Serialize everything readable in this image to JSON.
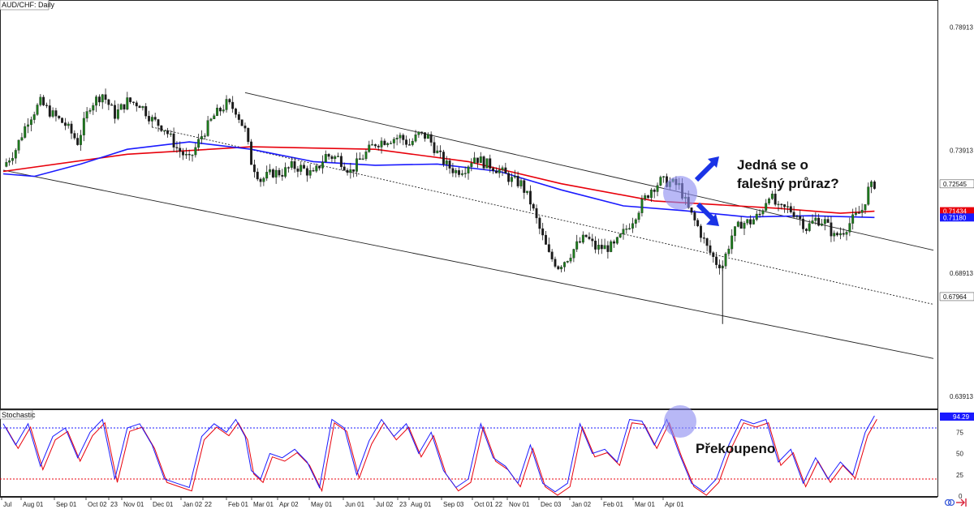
{
  "chart_data": {
    "type": "candlestick",
    "title": "AUD/CHF: Daily",
    "y_ticks": [
      "0.78913",
      "0.73913",
      "0.68913",
      "0.63913"
    ],
    "ylim": [
      0.6345,
      0.7995
    ],
    "price_labels": [
      {
        "text": "0.72545",
        "value": 0.72545,
        "bg": "#ffffff",
        "fg": "#111111"
      },
      {
        "text": "0.71434",
        "value": 0.71434,
        "bg": "#e8000b",
        "fg": "#ffffff"
      },
      {
        "text": "0.71180",
        "value": 0.7118,
        "bg": "#1a1aff",
        "fg": "#ffffff"
      },
      {
        "text": "0.67964",
        "value": 0.67964,
        "bg": "#ffffff",
        "fg": "#111111"
      }
    ],
    "x_ticks": [
      "Jul",
      "Aug 01",
      "Sep 01",
      "Oct 02",
      "23",
      "Nov 01",
      "Dec 01",
      "Jan 02",
      "22",
      "Feb 01",
      "Mar 01",
      "Apr 02",
      "May 01",
      "Jun 01",
      "Jul 02",
      "23",
      "Aug 01",
      "Sep 03",
      "Oct 01",
      "22",
      "Nov 01",
      "Dec 03",
      "Jan 02",
      "Feb 01",
      "Mar 01",
      "Apr 01"
    ],
    "close_series": [
      {
        "x": 0,
        "y": 0.7325
      },
      {
        "x": 4,
        "y": 0.7395
      },
      {
        "x": 8,
        "y": 0.7515
      },
      {
        "x": 12,
        "y": 0.7585
      },
      {
        "x": 16,
        "y": 0.7535
      },
      {
        "x": 20,
        "y": 0.7495
      },
      {
        "x": 24,
        "y": 0.7425
      },
      {
        "x": 28,
        "y": 0.7575
      },
      {
        "x": 32,
        "y": 0.762
      },
      {
        "x": 36,
        "y": 0.7535
      },
      {
        "x": 40,
        "y": 0.759
      },
      {
        "x": 44,
        "y": 0.758
      },
      {
        "x": 48,
        "y": 0.7515
      },
      {
        "x": 52,
        "y": 0.748
      },
      {
        "x": 56,
        "y": 0.74
      },
      {
        "x": 60,
        "y": 0.735
      },
      {
        "x": 64,
        "y": 0.745
      },
      {
        "x": 68,
        "y": 0.753
      },
      {
        "x": 72,
        "y": 0.758
      },
      {
        "x": 75,
        "y": 0.7555
      },
      {
        "x": 78,
        "y": 0.747
      },
      {
        "x": 80,
        "y": 0.7345
      },
      {
        "x": 83,
        "y": 0.727
      },
      {
        "x": 87,
        "y": 0.73
      },
      {
        "x": 90,
        "y": 0.73
      },
      {
        "x": 93,
        "y": 0.7325
      },
      {
        "x": 96,
        "y": 0.732
      },
      {
        "x": 100,
        "y": 0.729
      },
      {
        "x": 104,
        "y": 0.737
      },
      {
        "x": 108,
        "y": 0.736
      },
      {
        "x": 112,
        "y": 0.7305
      },
      {
        "x": 116,
        "y": 0.7365
      },
      {
        "x": 120,
        "y": 0.742
      },
      {
        "x": 124,
        "y": 0.7435
      },
      {
        "x": 128,
        "y": 0.7445
      },
      {
        "x": 131,
        "y": 0.7415
      },
      {
        "x": 134,
        "y": 0.7455
      },
      {
        "x": 137,
        "y": 0.7445
      },
      {
        "x": 140,
        "y": 0.738
      },
      {
        "x": 143,
        "y": 0.733
      },
      {
        "x": 146,
        "y": 0.7305
      },
      {
        "x": 149,
        "y": 0.732
      },
      {
        "x": 152,
        "y": 0.7365
      },
      {
        "x": 155,
        "y": 0.734
      },
      {
        "x": 158,
        "y": 0.7325
      },
      {
        "x": 161,
        "y": 0.73
      },
      {
        "x": 164,
        "y": 0.727
      },
      {
        "x": 167,
        "y": 0.7255
      },
      {
        "x": 170,
        "y": 0.718
      },
      {
        "x": 173,
        "y": 0.707
      },
      {
        "x": 176,
        "y": 0.6965
      },
      {
        "x": 179,
        "y": 0.692
      },
      {
        "x": 182,
        "y": 0.6955
      },
      {
        "x": 185,
        "y": 0.7005
      },
      {
        "x": 188,
        "y": 0.704
      },
      {
        "x": 191,
        "y": 0.6995
      },
      {
        "x": 194,
        "y": 0.6995
      },
      {
        "x": 197,
        "y": 0.7
      },
      {
        "x": 200,
        "y": 0.7055
      },
      {
        "x": 203,
        "y": 0.711
      },
      {
        "x": 206,
        "y": 0.7175
      },
      {
        "x": 209,
        "y": 0.7235
      },
      {
        "x": 212,
        "y": 0.7265
      },
      {
        "x": 215,
        "y": 0.726
      },
      {
        "x": 218,
        "y": 0.7245
      },
      {
        "x": 221,
        "y": 0.715
      },
      {
        "x": 224,
        "y": 0.708
      },
      {
        "x": 227,
        "y": 0.6995
      },
      {
        "x": 230,
        "y": 0.6935
      },
      {
        "x": 232,
        "y": 0.6925
      },
      {
        "x": 235,
        "y": 0.7045
      },
      {
        "x": 238,
        "y": 0.7095
      },
      {
        "x": 241,
        "y": 0.71
      },
      {
        "x": 244,
        "y": 0.713
      },
      {
        "x": 247,
        "y": 0.7215
      },
      {
        "x": 250,
        "y": 0.715
      },
      {
        "x": 253,
        "y": 0.7155
      },
      {
        "x": 256,
        "y": 0.713
      },
      {
        "x": 259,
        "y": 0.7075
      },
      {
        "x": 262,
        "y": 0.711
      },
      {
        "x": 265,
        "y": 0.71
      },
      {
        "x": 268,
        "y": 0.704
      },
      {
        "x": 271,
        "y": 0.7065
      },
      {
        "x": 274,
        "y": 0.711
      },
      {
        "x": 277,
        "y": 0.715
      },
      {
        "x": 279,
        "y": 0.723
      },
      {
        "x": 281,
        "y": 0.72545
      }
    ],
    "moving_averages": [
      {
        "color": "#e8000b",
        "points": [
          {
            "x": 0,
            "y": 0.7305
          },
          {
            "x": 40,
            "y": 0.7375
          },
          {
            "x": 80,
            "y": 0.7405
          },
          {
            "x": 120,
            "y": 0.7395
          },
          {
            "x": 150,
            "y": 0.7345
          },
          {
            "x": 180,
            "y": 0.7255
          },
          {
            "x": 210,
            "y": 0.7185
          },
          {
            "x": 250,
            "y": 0.7155
          },
          {
            "x": 270,
            "y": 0.7135
          },
          {
            "x": 281,
            "y": 0.71434
          }
        ]
      },
      {
        "color": "#1a1aff",
        "points": [
          {
            "x": 0,
            "y": 0.7295
          },
          {
            "x": 10,
            "y": 0.7285
          },
          {
            "x": 25,
            "y": 0.7335
          },
          {
            "x": 40,
            "y": 0.7395
          },
          {
            "x": 60,
            "y": 0.7425
          },
          {
            "x": 80,
            "y": 0.7395
          },
          {
            "x": 100,
            "y": 0.7345
          },
          {
            "x": 120,
            "y": 0.733
          },
          {
            "x": 140,
            "y": 0.7335
          },
          {
            "x": 160,
            "y": 0.7305
          },
          {
            "x": 180,
            "y": 0.723
          },
          {
            "x": 200,
            "y": 0.7165
          },
          {
            "x": 220,
            "y": 0.7145
          },
          {
            "x": 240,
            "y": 0.712
          },
          {
            "x": 260,
            "y": 0.7125
          },
          {
            "x": 281,
            "y": 0.7118
          }
        ]
      }
    ],
    "spike_low": {
      "x": 232,
      "y": 0.6685
    },
    "channel_lines": [
      {
        "style": "solid",
        "from": {
          "x": 78,
          "y": 0.7625
        },
        "to": {
          "x": 300,
          "y": 0.6985
        }
      },
      {
        "style": "dotted",
        "from": {
          "x": 48,
          "y": 0.7485
        },
        "to": {
          "x": 300,
          "y": 0.6765
        }
      },
      {
        "style": "solid",
        "from": {
          "x": 0,
          "y": 0.731
        },
        "to": {
          "x": 300,
          "y": 0.6545
        }
      }
    ],
    "x_max": 300,
    "stochastic": {
      "title": "Stochastic",
      "y_ticks": [
        "75",
        "50",
        "25",
        "0"
      ],
      "ylim": [
        0,
        100
      ],
      "overbought": 80,
      "oversold": 20,
      "current": "94.29",
      "main": [
        {
          "x": 0,
          "y": 85
        },
        {
          "x": 4,
          "y": 60
        },
        {
          "x": 8,
          "y": 85
        },
        {
          "x": 12,
          "y": 35
        },
        {
          "x": 16,
          "y": 70
        },
        {
          "x": 20,
          "y": 80
        },
        {
          "x": 24,
          "y": 45
        },
        {
          "x": 28,
          "y": 75
        },
        {
          "x": 32,
          "y": 90
        },
        {
          "x": 36,
          "y": 20
        },
        {
          "x": 40,
          "y": 80
        },
        {
          "x": 44,
          "y": 85
        },
        {
          "x": 48,
          "y": 60
        },
        {
          "x": 52,
          "y": 20
        },
        {
          "x": 56,
          "y": 15
        },
        {
          "x": 60,
          "y": 10
        },
        {
          "x": 64,
          "y": 70
        },
        {
          "x": 68,
          "y": 85
        },
        {
          "x": 72,
          "y": 75
        },
        {
          "x": 75,
          "y": 90
        },
        {
          "x": 78,
          "y": 70
        },
        {
          "x": 80,
          "y": 30
        },
        {
          "x": 83,
          "y": 20
        },
        {
          "x": 86,
          "y": 50
        },
        {
          "x": 90,
          "y": 45
        },
        {
          "x": 94,
          "y": 55
        },
        {
          "x": 98,
          "y": 40
        },
        {
          "x": 102,
          "y": 10
        },
        {
          "x": 106,
          "y": 90
        },
        {
          "x": 110,
          "y": 80
        },
        {
          "x": 114,
          "y": 25
        },
        {
          "x": 118,
          "y": 65
        },
        {
          "x": 122,
          "y": 90
        },
        {
          "x": 126,
          "y": 70
        },
        {
          "x": 130,
          "y": 85
        },
        {
          "x": 134,
          "y": 50
        },
        {
          "x": 138,
          "y": 75
        },
        {
          "x": 142,
          "y": 30
        },
        {
          "x": 146,
          "y": 10
        },
        {
          "x": 150,
          "y": 20
        },
        {
          "x": 154,
          "y": 85
        },
        {
          "x": 158,
          "y": 45
        },
        {
          "x": 162,
          "y": 35
        },
        {
          "x": 166,
          "y": 15
        },
        {
          "x": 170,
          "y": 60
        },
        {
          "x": 174,
          "y": 15
        },
        {
          "x": 178,
          "y": 5
        },
        {
          "x": 182,
          "y": 15
        },
        {
          "x": 186,
          "y": 85
        },
        {
          "x": 190,
          "y": 50
        },
        {
          "x": 194,
          "y": 55
        },
        {
          "x": 198,
          "y": 40
        },
        {
          "x": 202,
          "y": 90
        },
        {
          "x": 206,
          "y": 88
        },
        {
          "x": 210,
          "y": 60
        },
        {
          "x": 214,
          "y": 90
        },
        {
          "x": 218,
          "y": 50
        },
        {
          "x": 222,
          "y": 15
        },
        {
          "x": 226,
          "y": 5
        },
        {
          "x": 230,
          "y": 20
        },
        {
          "x": 234,
          "y": 60
        },
        {
          "x": 238,
          "y": 90
        },
        {
          "x": 242,
          "y": 85
        },
        {
          "x": 246,
          "y": 90
        },
        {
          "x": 250,
          "y": 40
        },
        {
          "x": 254,
          "y": 55
        },
        {
          "x": 258,
          "y": 15
        },
        {
          "x": 262,
          "y": 45
        },
        {
          "x": 266,
          "y": 20
        },
        {
          "x": 270,
          "y": 40
        },
        {
          "x": 274,
          "y": 25
        },
        {
          "x": 278,
          "y": 75
        },
        {
          "x": 281,
          "y": 94.29
        }
      ]
    }
  },
  "annotations": {
    "breakout_text_1": "Jedná se o",
    "breakout_text_2": "falešný průraz?",
    "overbought_text": "Překoupeno"
  },
  "colors": {
    "bull_candle": "#1d7a1d",
    "bear_candle": "#1a1a1a",
    "circle": "#8c8cf0",
    "arrows": "#1a33e6",
    "stoch_main": "#1a1aff",
    "stoch_signal": "#e8000b"
  }
}
